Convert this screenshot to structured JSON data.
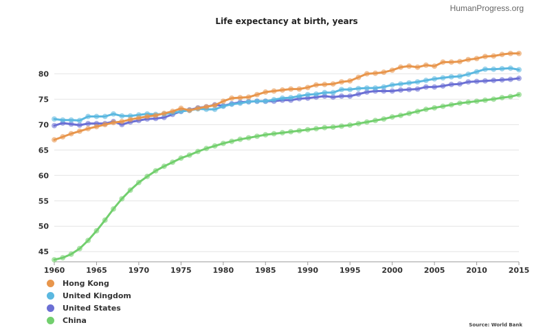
{
  "watermark": "HumanProgress.org",
  "source": "Source: World Bank",
  "chart_data": {
    "type": "line",
    "title": "Life expectancy at birth, years",
    "xlabel": "",
    "ylabel": "",
    "xlim": [
      1960,
      2015
    ],
    "ylim": [
      43,
      86
    ],
    "xticks": [
      1960,
      1965,
      1970,
      1975,
      1980,
      1985,
      1990,
      1995,
      2000,
      2005,
      2010,
      2015
    ],
    "yticks": [
      45,
      50,
      55,
      60,
      65,
      70,
      75,
      80
    ],
    "grid": true,
    "legend": "bottom-left",
    "x": [
      1960,
      1961,
      1962,
      1963,
      1964,
      1965,
      1966,
      1967,
      1968,
      1969,
      1970,
      1971,
      1972,
      1973,
      1974,
      1975,
      1976,
      1977,
      1978,
      1979,
      1980,
      1981,
      1982,
      1983,
      1984,
      1985,
      1986,
      1987,
      1988,
      1989,
      1990,
      1991,
      1992,
      1993,
      1994,
      1995,
      1996,
      1997,
      1998,
      1999,
      2000,
      2001,
      2002,
      2003,
      2004,
      2005,
      2006,
      2007,
      2008,
      2009,
      2010,
      2011,
      2012,
      2013,
      2014,
      2015
    ],
    "series": [
      {
        "name": "Hong Kong",
        "color": "#e8964c",
        "values": [
          67.0,
          67.6,
          68.2,
          68.7,
          69.2,
          69.6,
          70.0,
          70.4,
          70.6,
          71.0,
          71.3,
          71.6,
          71.8,
          72.2,
          72.6,
          73.2,
          72.8,
          73.2,
          73.5,
          73.8,
          74.6,
          75.2,
          75.3,
          75.4,
          75.9,
          76.4,
          76.6,
          76.8,
          77.0,
          77.0,
          77.3,
          77.8,
          77.9,
          78.0,
          78.4,
          78.6,
          79.3,
          80.0,
          80.1,
          80.3,
          80.7,
          81.3,
          81.5,
          81.3,
          81.7,
          81.5,
          82.3,
          82.3,
          82.4,
          82.8,
          83.0,
          83.4,
          83.5,
          83.8,
          84.0,
          84.0
        ]
      },
      {
        "name": "United Kingdom",
        "color": "#5bb8e0",
        "values": [
          71.1,
          70.9,
          70.9,
          70.8,
          71.6,
          71.6,
          71.6,
          72.1,
          71.7,
          71.7,
          71.9,
          72.1,
          72.0,
          72.1,
          72.3,
          72.6,
          72.8,
          73.1,
          73.0,
          73.0,
          73.6,
          74.0,
          74.2,
          74.5,
          74.6,
          74.6,
          74.9,
          75.2,
          75.3,
          75.6,
          75.9,
          76.0,
          76.3,
          76.3,
          76.9,
          76.9,
          77.1,
          77.2,
          77.2,
          77.4,
          77.8,
          78.0,
          78.2,
          78.4,
          78.7,
          79.0,
          79.2,
          79.4,
          79.5,
          79.9,
          80.4,
          80.9,
          80.9,
          81.0,
          81.1,
          80.8
        ]
      },
      {
        "name": "United States",
        "color": "#6b6fd4",
        "values": [
          69.8,
          70.3,
          70.1,
          69.9,
          70.2,
          70.2,
          70.2,
          70.6,
          70.0,
          70.5,
          70.8,
          71.1,
          71.2,
          71.4,
          72.0,
          72.6,
          72.9,
          73.3,
          73.5,
          73.9,
          73.7,
          74.1,
          74.4,
          74.5,
          74.6,
          74.6,
          74.6,
          74.8,
          74.8,
          75.1,
          75.2,
          75.4,
          75.6,
          75.4,
          75.6,
          75.6,
          76.0,
          76.4,
          76.6,
          76.6,
          76.6,
          76.8,
          76.9,
          77.0,
          77.4,
          77.4,
          77.6,
          77.9,
          78.0,
          78.4,
          78.5,
          78.6,
          78.7,
          78.8,
          78.9,
          79.1
        ]
      },
      {
        "name": "China",
        "color": "#72cf6e",
        "values": [
          43.4,
          43.8,
          44.5,
          45.6,
          47.2,
          49.1,
          51.2,
          53.4,
          55.4,
          57.1,
          58.6,
          59.8,
          60.9,
          61.8,
          62.6,
          63.4,
          64.0,
          64.7,
          65.3,
          65.8,
          66.3,
          66.7,
          67.1,
          67.4,
          67.7,
          68.0,
          68.2,
          68.4,
          68.6,
          68.8,
          69.0,
          69.2,
          69.4,
          69.5,
          69.7,
          69.9,
          70.2,
          70.5,
          70.8,
          71.1,
          71.5,
          71.8,
          72.2,
          72.6,
          73.0,
          73.3,
          73.6,
          73.9,
          74.2,
          74.4,
          74.6,
          74.8,
          75.0,
          75.3,
          75.5,
          75.9
        ]
      }
    ]
  }
}
